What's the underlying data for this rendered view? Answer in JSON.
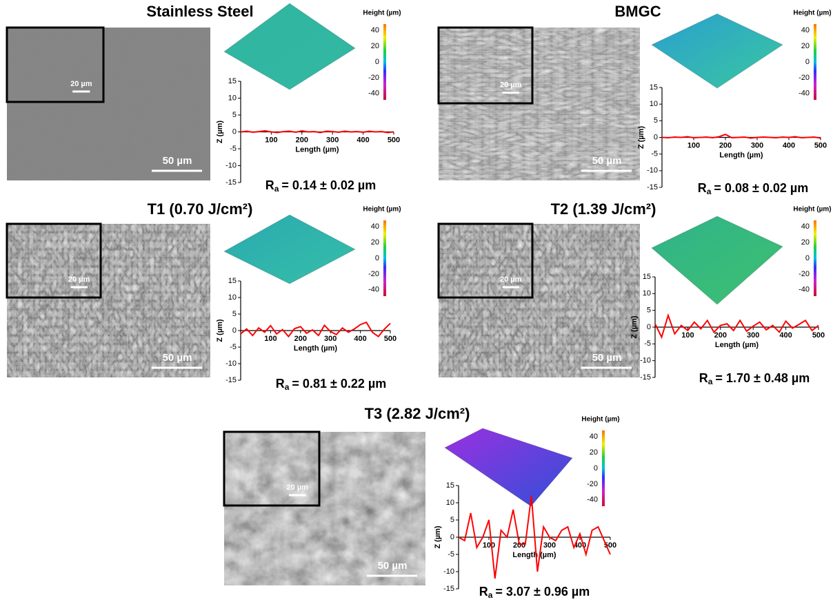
{
  "chart_data": [
    {
      "type": "line",
      "title": "Stainless Steel",
      "annotation": "= 0.14 ± 0.02 µm",
      "annotation_symbol": "R",
      "annotation_subscript": "a",
      "scale_bar": "50 µm",
      "inset_scale_bar": "20 µm",
      "colorbar": {
        "title": "Height (µm)",
        "ticks": [
          40,
          20,
          0,
          -20,
          -40
        ],
        "lim": [
          -48,
          48
        ]
      },
      "surface_colors": [
        "#2fb5a0",
        "#33b8a3"
      ],
      "xlabel": "Length (µm)",
      "ylabel": "Z (µm)",
      "x": [
        0,
        20,
        40,
        60,
        80,
        100,
        120,
        140,
        160,
        180,
        200,
        220,
        240,
        260,
        280,
        300,
        320,
        340,
        360,
        380,
        400,
        420,
        440,
        460,
        480,
        500
      ],
      "series": [
        {
          "color": "#ff0000",
          "values": [
            0,
            0.2,
            -0.1,
            0.1,
            0.3,
            0,
            -0.2,
            0.1,
            0.2,
            -0.1,
            0.3,
            0,
            0.1,
            -0.2,
            0.2,
            0.1,
            -0.1,
            0.2,
            0,
            0.1,
            -0.1,
            0.2,
            0,
            0.1,
            -0.2,
            0
          ]
        }
      ],
      "xlim": [
        0,
        500
      ],
      "ylim": [
        -15,
        15
      ],
      "xticks": [
        100,
        200,
        300,
        400,
        500
      ],
      "yticks": [
        -15,
        -10,
        -5,
        0,
        5,
        10,
        15
      ]
    },
    {
      "type": "line",
      "title": "BMGC",
      "annotation": "= 0.08 ± 0.02 µm",
      "annotation_symbol": "R",
      "annotation_subscript": "a",
      "scale_bar": "50 µm",
      "inset_scale_bar": "20 µm",
      "colorbar": {
        "title": "Height (µm)",
        "ticks": [
          40,
          20,
          0,
          -20,
          -40
        ],
        "lim": [
          -48,
          48
        ]
      },
      "surface_colors": [
        "#2a9fd0",
        "#3ac7a0"
      ],
      "xlabel": "Length (µm)",
      "ylabel": "Z (µm)",
      "x": [
        0,
        20,
        40,
        60,
        80,
        100,
        120,
        140,
        160,
        180,
        200,
        220,
        240,
        260,
        280,
        300,
        320,
        340,
        360,
        380,
        400,
        420,
        440,
        460,
        480,
        500
      ],
      "series": [
        {
          "color": "#ff0000",
          "values": [
            0,
            -0.1,
            0.1,
            0,
            0.2,
            -0.1,
            0,
            0.1,
            -0.1,
            0.2,
            0.9,
            -0.1,
            0,
            0.1,
            -0.2,
            0,
            0.1,
            0,
            -0.1,
            0.1,
            0,
            0.2,
            -0.1,
            0,
            0.1,
            -0.2
          ]
        }
      ],
      "xlim": [
        0,
        500
      ],
      "ylim": [
        -15,
        15
      ],
      "xticks": [
        100,
        200,
        300,
        400,
        500
      ],
      "yticks": [
        -15,
        -10,
        -5,
        0,
        5,
        10,
        15
      ]
    },
    {
      "type": "line",
      "title": "T1 (0.70 J/cm²)",
      "annotation": "= 0.81 ± 0.22 µm",
      "annotation_symbol": "R",
      "annotation_subscript": "a",
      "scale_bar": "50 µm",
      "inset_scale_bar": "20 µm",
      "colorbar": {
        "title": "Height (µm)",
        "ticks": [
          40,
          20,
          0,
          -20,
          -40
        ],
        "lim": [
          -48,
          48
        ]
      },
      "surface_colors": [
        "#2aa9b0",
        "#36bfa8"
      ],
      "xlabel": "Length (µm)",
      "ylabel": "Z (µm)",
      "x": [
        0,
        20,
        40,
        60,
        80,
        100,
        120,
        140,
        160,
        180,
        200,
        220,
        240,
        260,
        280,
        300,
        320,
        340,
        360,
        380,
        400,
        420,
        440,
        460,
        480,
        500
      ],
      "series": [
        {
          "color": "#ff0000",
          "values": [
            -1,
            0.5,
            -1.5,
            0.8,
            -0.5,
            1.5,
            -1,
            0.3,
            -1.8,
            0.6,
            1.2,
            -0.8,
            0.2,
            -1.5,
            1.6,
            -0.3,
            -1.2,
            0.8,
            -0.5,
            0.5,
            1.8,
            2.5,
            -0.5,
            -1.8,
            0.4,
            2.2
          ]
        }
      ],
      "xlim": [
        0,
        500
      ],
      "ylim": [
        -15,
        15
      ],
      "xticks": [
        100,
        200,
        300,
        400,
        500
      ],
      "yticks": [
        -15,
        -10,
        -5,
        0,
        5,
        10,
        15
      ]
    },
    {
      "type": "line",
      "title": "T2 (1.39 J/cm²)",
      "annotation": "= 1.70 ± 0.48 µm",
      "annotation_symbol": "R",
      "annotation_subscript": "a",
      "scale_bar": "50 µm",
      "inset_scale_bar": "20 µm",
      "colorbar": {
        "title": "Height (µm)",
        "ticks": [
          40,
          20,
          0,
          -20,
          -40
        ],
        "lim": [
          -48,
          48
        ]
      },
      "surface_colors": [
        "#2fb38a",
        "#3fc070"
      ],
      "xlabel": "Length (µm)",
      "ylabel": "Z (µm)",
      "x": [
        0,
        20,
        40,
        60,
        80,
        100,
        120,
        140,
        160,
        180,
        200,
        220,
        240,
        260,
        280,
        300,
        320,
        340,
        360,
        380,
        400,
        420,
        440,
        460,
        480,
        500
      ],
      "series": [
        {
          "color": "#ff0000",
          "values": [
            1,
            -3,
            3.5,
            -2,
            0.5,
            -1,
            1.5,
            -0.5,
            2,
            -1.5,
            0.5,
            1,
            -1,
            2,
            -1.2,
            0.3,
            1.5,
            -0.8,
            0.5,
            -1.5,
            1.8,
            -0.3,
            0.8,
            2,
            -1,
            0.5
          ]
        }
      ],
      "xlim": [
        0,
        500
      ],
      "ylim": [
        -15,
        15
      ],
      "xticks": [
        100,
        200,
        300,
        400,
        500
      ],
      "yticks": [
        -15,
        -10,
        -5,
        0,
        5,
        10,
        15
      ]
    },
    {
      "type": "line",
      "title": "T3 (2.82 J/cm²)",
      "annotation": "= 3.07 ± 0.96 µm",
      "annotation_symbol": "R",
      "annotation_subscript": "a",
      "scale_bar": "50 µm",
      "inset_scale_bar": "20 µm",
      "colorbar": {
        "title": "Height (µm)",
        "ticks": [
          40,
          20,
          0,
          -20,
          -40
        ],
        "lim": [
          -48,
          48
        ]
      },
      "surface_colors": [
        "#9a30e0",
        "#3050d8"
      ],
      "xlabel": "Length (µm)",
      "ylabel": "Z (µm)",
      "x": [
        0,
        20,
        40,
        60,
        80,
        100,
        120,
        140,
        160,
        180,
        200,
        220,
        240,
        260,
        280,
        300,
        320,
        340,
        360,
        380,
        400,
        420,
        440,
        460,
        480,
        500
      ],
      "series": [
        {
          "color": "#ff0000",
          "values": [
            0,
            -1,
            7,
            -3,
            0,
            5,
            -12,
            2,
            0,
            8,
            -2,
            -2,
            12,
            -10,
            3,
            0,
            -1,
            2,
            3,
            -3,
            1,
            -5,
            2,
            3,
            -1,
            -5
          ]
        }
      ],
      "xlim": [
        0,
        500
      ],
      "ylim": [
        -15,
        15
      ],
      "xticks": [
        100,
        200,
        300,
        400,
        500
      ],
      "yticks": [
        -15,
        -10,
        -5,
        0,
        5,
        10,
        15
      ]
    }
  ]
}
